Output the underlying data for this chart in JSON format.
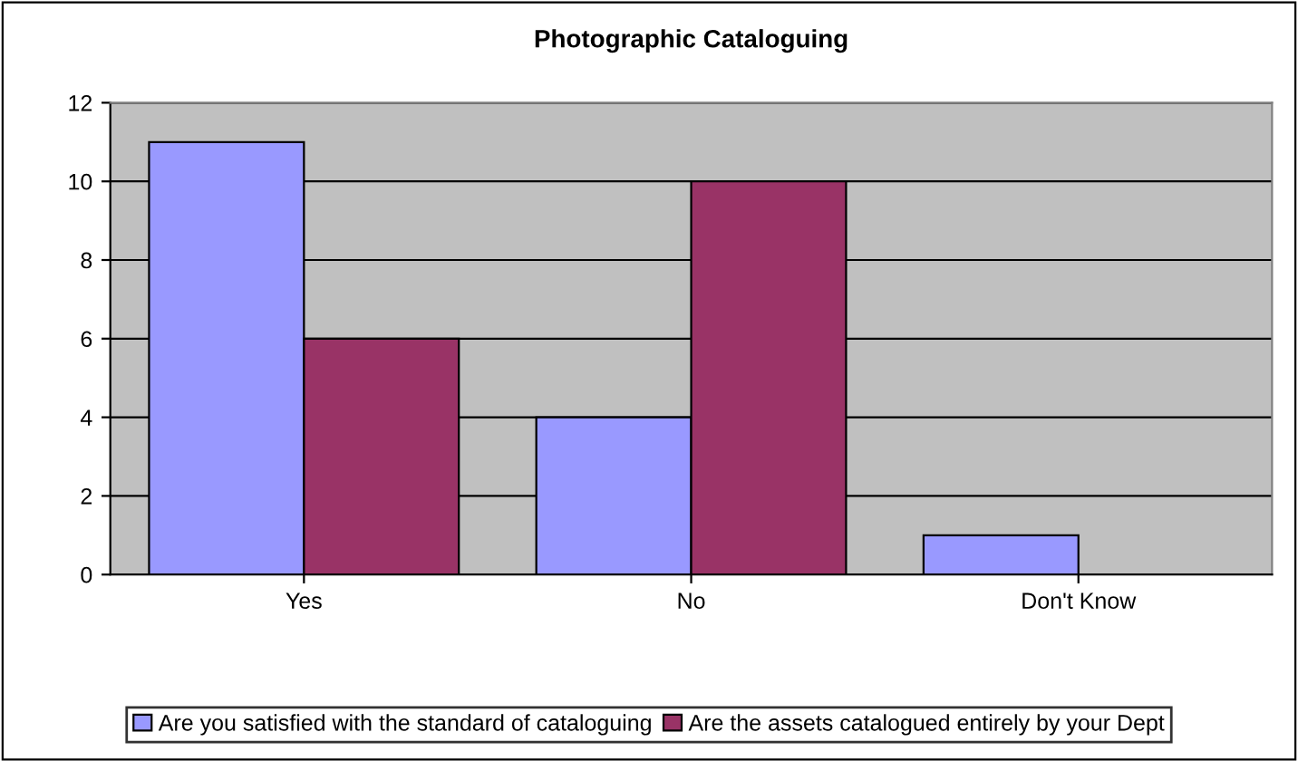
{
  "chart_data": {
    "type": "bar",
    "title": "Photographic Cataloguing",
    "categories": [
      "Yes",
      "No",
      "Don't Know"
    ],
    "series": [
      {
        "name": "Are you satisfied with the standard of cataloguing",
        "color": "#9999ff",
        "values": [
          11,
          4,
          1
        ]
      },
      {
        "name": "Are the assets catalogued entirely by your Dept",
        "color": "#993366",
        "values": [
          6,
          10,
          null
        ]
      }
    ],
    "ylim": [
      0,
      12
    ],
    "yticks": [
      0,
      2,
      4,
      6,
      8,
      10,
      12
    ],
    "grid": "y",
    "legend": "bottom"
  }
}
